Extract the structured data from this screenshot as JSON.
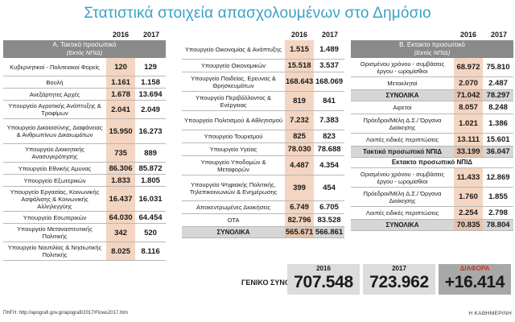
{
  "title": "Στατιστικά στοιχεία απασχολουμένων στο Δημόσιο",
  "years": [
    "2016",
    "2017"
  ],
  "section_a": {
    "header": "Α. Τακτικό προσωπικό",
    "subheader": "(Εκτός ΝΠΙΔ)",
    "rows": [
      {
        "label": "Κυβερνητικοί - Πολιτειακοί Φορείς",
        "v2016": "120",
        "v2017": "129"
      },
      {
        "label": "Βουλή",
        "v2016": "1.161",
        "v2017": "1.158"
      },
      {
        "label": "Ανεξάρτητες Αρχές",
        "v2016": "1.678",
        "v2017": "13.694"
      },
      {
        "label": "Υπουργείο Αγροτικής Ανάπτυξης & Τροφίμων",
        "v2016": "2.041",
        "v2017": "2.049"
      },
      {
        "label": "Υπουργείο Δικαιοσύνης, Διαφάνειας & Ανθρωπίνων Δικαιωμάτων",
        "v2016": "15.950",
        "v2017": "16.273"
      },
      {
        "label": "Υπουργείο Διοικητικής Ανασυγκρότησης",
        "v2016": "735",
        "v2017": "889"
      },
      {
        "label": "Υπουργείο Εθνικής Αμυνας",
        "v2016": "86.306",
        "v2017": "85.872"
      },
      {
        "label": "Υπουργείο Εξωτερικών",
        "v2016": "1.833",
        "v2017": "1.805"
      },
      {
        "label": "Υπουργείο Εργασίας, Κοινωνικής Ασφάλισης & Κοινωνικής Αλληλεγγύης",
        "v2016": "16.437",
        "v2017": "16.031"
      },
      {
        "label": "Υπουργείο Εσωτερικών",
        "v2016": "64.030",
        "v2017": "64.454"
      },
      {
        "label": "Υπουργείο Μεταναστευτικής Πολιτικής",
        "v2016": "342",
        "v2017": "520"
      },
      {
        "label": "Υπουργείο Ναυτιλίας & Νησιωτικής Πολιτικής",
        "v2016": "8.025",
        "v2017": "8.116"
      }
    ]
  },
  "section_mid": {
    "rows": [
      {
        "label": "Υπουργείο Οικονομίας & Ανάπτυξης",
        "v2016": "1.515",
        "v2017": "1.489"
      },
      {
        "label": "Υπουργείο Οικονομικών",
        "v2016": "15.518",
        "v2017": "3.537"
      },
      {
        "label": "Υπουργείο Παιδείας, Ερευνας & Θρησκευμάτων",
        "v2016": "168.643",
        "v2017": "168.069"
      },
      {
        "label": "Υπουργείο Περιβάλλοντος & Ενέργειας",
        "v2016": "819",
        "v2017": "841"
      },
      {
        "label": "Υπουργείο Πολιτισμού & Αθλητισμού",
        "v2016": "7.232",
        "v2017": "7.383"
      },
      {
        "label": "Υπουργείο Τουρισμού",
        "v2016": "825",
        "v2017": "823"
      },
      {
        "label": "Υπουργείο Υγείας",
        "v2016": "78.030",
        "v2017": "78.688"
      },
      {
        "label": "Υπουργείο Υποδομών & Μεταφορών",
        "v2016": "4.487",
        "v2017": "4.354"
      },
      {
        "label": "Υπουργείο Ψηφιακής Πολιτικής, Τηλεπικοινωνιών & Ενημέρωσης",
        "v2016": "399",
        "v2017": "454"
      },
      {
        "label": "Αποκεντρωμένες Διοικήσεις",
        "v2016": "6.749",
        "v2017": "6.705"
      },
      {
        "label": "ΟΤΑ",
        "v2016": "82.796",
        "v2017": "83.528"
      }
    ],
    "total": {
      "label": "ΣΥΝΟΛΙΚΑ",
      "v2016": "565.671",
      "v2017": "566.861"
    }
  },
  "section_b": {
    "header": "Β. Εκτακτο προσωπικό",
    "subheader": "(Εκτός ΝΠΙΔ)",
    "rows_1": [
      {
        "label": "Ορισμένου χρόνου - συμβάσεις έργου - ωρομίσθιοι",
        "v2016": "68.972",
        "v2017": "75.810"
      },
      {
        "label": "Μετακλητοί",
        "v2016": "2.070",
        "v2017": "2.487"
      }
    ],
    "total_1": {
      "label": "ΣΥΝΟΛΙΚΑ",
      "v2016": "71.042",
      "v2017": "78.297"
    },
    "rows_2": [
      {
        "label": "Αιρετοί",
        "v2016": "8.057",
        "v2017": "8.248"
      },
      {
        "label": "Πρόεδροι/Μέλη Δ.Σ./ Όργανα Διοίκησης",
        "v2016": "1.021",
        "v2017": "1.386"
      },
      {
        "label": "Λοιπές ειδικές περιπτώσεις",
        "v2016": "13.111",
        "v2017": "15.601"
      }
    ],
    "total_2": {
      "label": "Τακτικό προσωπικό ΝΠΙΔ",
      "v2016": "33.199",
      "v2017": "36.047"
    },
    "subsection": "Εκτακτο προσωπικό ΝΠΙΔ",
    "rows_3": [
      {
        "label": "Ορισμένου χρόνου - συμβάσεις έργου - ωρομίσθιοι",
        "v2016": "11.433",
        "v2017": "12.869"
      },
      {
        "label": "Πρόεδροι/Μέλη Δ.Σ./ Όργανα Διοίκησης",
        "v2016": "1.760",
        "v2017": "1.855"
      },
      {
        "label": "Λοιπές ειδικές περιπτώσεις",
        "v2016": "2.254",
        "v2017": "2.798"
      }
    ],
    "total_3": {
      "label": "ΣΥΝΟΛΙΚΑ",
      "v2016": "70.835",
      "v2017": "78.804"
    }
  },
  "grand_total": {
    "label": "ΓΕΝΙΚΟ ΣΥΝΟΛΟ",
    "y2016": "2016",
    "v2016": "707.548",
    "y2017": "2017",
    "v2017": "723.962",
    "diff_label": "ΔΙΑΦΟΡΑ",
    "diff": "+16.414"
  },
  "source": "ΠΗΓΗ: http://apografi.gov.gr/apografi/2017/Flows2017.htm",
  "brand": "Η ΚΑΘΗΜΕΡΙΝΗ"
}
